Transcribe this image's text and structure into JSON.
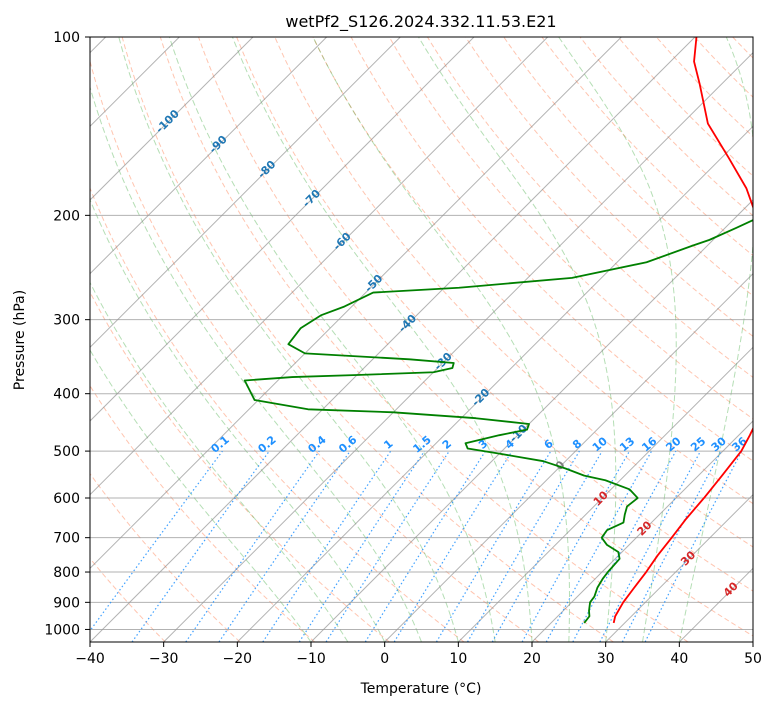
{
  "chart_data": {
    "type": "line",
    "title": "wetPf2_S126.2024.332.11.53.E21",
    "xlabel": "Temperature (°C)",
    "ylabel": "Pressure (hPa)",
    "xlim": [
      -40,
      50
    ],
    "ylim": [
      1050,
      100
    ],
    "y_scale": "log",
    "x_ticks": [
      "−40",
      "−30",
      "−20",
      "−10",
      "0",
      "10",
      "20",
      "30",
      "40",
      "50"
    ],
    "y_ticks": [
      "100",
      "200",
      "300",
      "400",
      "500",
      "600",
      "700",
      "800",
      "900",
      "1000"
    ],
    "grid": true,
    "colors": {
      "temperature": "#ff0000",
      "dewpoint": "#008000",
      "dry_adiabat": "#ff7f50",
      "moist_adiabat": "#2ca02c",
      "mixing_ratio": "#1e90ff",
      "isotherm": "#808080",
      "isotherm_label": "#1f77b4",
      "warm_label": "#d62728"
    },
    "isotherm_labels": [
      "-100",
      "-90",
      "-80",
      "-70",
      "-60",
      "-50",
      "-40",
      "-30",
      "-20",
      "-10",
      "0",
      "10",
      "20",
      "30",
      "40"
    ],
    "mixing_ratio_labels": [
      "0.1",
      "0.2",
      "0.4",
      "0.6",
      "1",
      "1.5",
      "2",
      "3",
      "4",
      "6",
      "8",
      "10",
      "13",
      "16",
      "20",
      "25",
      "30",
      "36"
    ],
    "series": [
      {
        "id": "temperature",
        "points": [
          [
            975,
            28.5
          ],
          [
            950,
            27.8
          ],
          [
            900,
            27.0
          ],
          [
            850,
            26.5
          ],
          [
            800,
            26.0
          ],
          [
            750,
            25.3
          ],
          [
            700,
            24.8
          ],
          [
            650,
            24.2
          ],
          [
            600,
            23.8
          ],
          [
            550,
            23.2
          ],
          [
            500,
            22.5
          ],
          [
            470,
            21.5
          ],
          [
            440,
            20.3
          ],
          [
            420,
            19.5
          ],
          [
            400,
            19.0
          ],
          [
            370,
            17.5
          ],
          [
            340,
            15.8
          ],
          [
            320,
            14.0
          ],
          [
            300,
            11.5
          ],
          [
            280,
            7.5
          ],
          [
            250,
            2.0
          ],
          [
            220,
            -3.5
          ],
          [
            200,
            -7.5
          ],
          [
            180,
            -12.5
          ],
          [
            160,
            -19.0
          ],
          [
            140,
            -26.5
          ],
          [
            120,
            -33.0
          ],
          [
            110,
            -36.8
          ],
          [
            100,
            -39.8
          ]
        ]
      },
      {
        "id": "dewpoint",
        "points": [
          [
            975,
            24.5
          ],
          [
            950,
            24.3
          ],
          [
            930,
            23.5
          ],
          [
            900,
            22.5
          ],
          [
            880,
            22.3
          ],
          [
            850,
            21.5
          ],
          [
            820,
            21.0
          ],
          [
            800,
            20.8
          ],
          [
            760,
            20.6
          ],
          [
            740,
            19.5
          ],
          [
            720,
            17.0
          ],
          [
            700,
            15.3
          ],
          [
            680,
            15.0
          ],
          [
            660,
            16.2
          ],
          [
            640,
            15.3
          ],
          [
            620,
            14.5
          ],
          [
            600,
            14.8
          ],
          [
            580,
            12.5
          ],
          [
            560,
            8.0
          ],
          [
            550,
            4.5
          ],
          [
            535,
            1.0
          ],
          [
            520,
            -3.0
          ],
          [
            505,
            -10.0
          ],
          [
            495,
            -15.0
          ],
          [
            485,
            -16.0
          ],
          [
            470,
            -12.5
          ],
          [
            460,
            -9.5
          ],
          [
            450,
            -10.0
          ],
          [
            440,
            -18.0
          ],
          [
            430,
            -30.0
          ],
          [
            425,
            -42.0
          ],
          [
            410,
            -50.5
          ],
          [
            380,
            -54.5
          ],
          [
            375,
            -48.5
          ],
          [
            372,
            -40.0
          ],
          [
            368,
            -30.0
          ],
          [
            362,
            -28.0
          ],
          [
            355,
            -28.5
          ],
          [
            350,
            -35.0
          ],
          [
            342,
            -50.0
          ],
          [
            330,
            -53.5
          ],
          [
            310,
            -54.0
          ],
          [
            295,
            -53.0
          ],
          [
            285,
            -51.0
          ],
          [
            270,
            -49.0
          ],
          [
            265,
            -38.0
          ],
          [
            255,
            -24.0
          ],
          [
            240,
            -16.0
          ],
          [
            225,
            -12.0
          ],
          [
            220,
            -10.5
          ],
          [
            210,
            -8.5
          ],
          [
            200,
            -6.5
          ],
          [
            190,
            -6.5
          ],
          [
            180,
            -8.5
          ],
          [
            160,
            -12.5
          ],
          [
            140,
            -17.5
          ],
          [
            120,
            -22.5
          ],
          [
            115,
            -24.0
          ],
          [
            108,
            -22.5
          ],
          [
            102,
            -18.0
          ],
          [
            100,
            -17.5
          ]
        ]
      }
    ]
  }
}
